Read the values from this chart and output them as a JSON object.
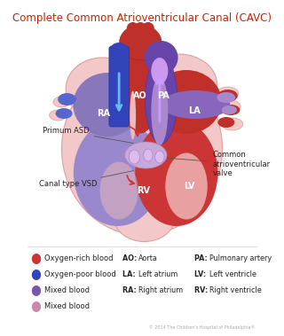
{
  "title": "Complete Common Atrioventricular Canal (CAVC)",
  "title_color": "#cc2200",
  "title_fontsize": 8.5,
  "bg_color": "#ffffff",
  "legend_items": [
    {
      "color": "#cc3333",
      "label": "Oxygen-rich blood"
    },
    {
      "color": "#3344bb",
      "label": "Oxygen-poor blood"
    },
    {
      "color": "#7755aa",
      "label": "Mixed blood"
    },
    {
      "color": "#cc88aa",
      "label": "Mixed blood"
    }
  ],
  "copyright": "© 2014 The Children's Hospital of Philadelphia®"
}
